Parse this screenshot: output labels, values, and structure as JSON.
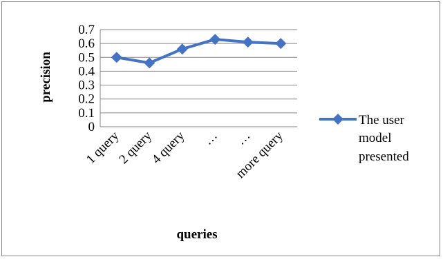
{
  "chart_data": {
    "type": "line",
    "categories": [
      "1 query",
      "2 query",
      "4 query",
      "…",
      "…",
      "more query"
    ],
    "series": [
      {
        "name": "The user model presented",
        "values": [
          0.5,
          0.46,
          0.56,
          0.63,
          0.61,
          0.6
        ],
        "color": "#4472C4",
        "marker": "diamond"
      }
    ],
    "xlabel": "queries",
    "ylabel": "precision",
    "ylim": [
      0,
      0.7
    ],
    "yticks": [
      "0",
      "0.1",
      "0.2",
      "0.3",
      "0.4",
      "0.5",
      "0.6",
      "0.7"
    ],
    "grid": "horizontal",
    "legend_position": "right",
    "legend_lines": [
      "The user",
      "model",
      "presented"
    ]
  }
}
